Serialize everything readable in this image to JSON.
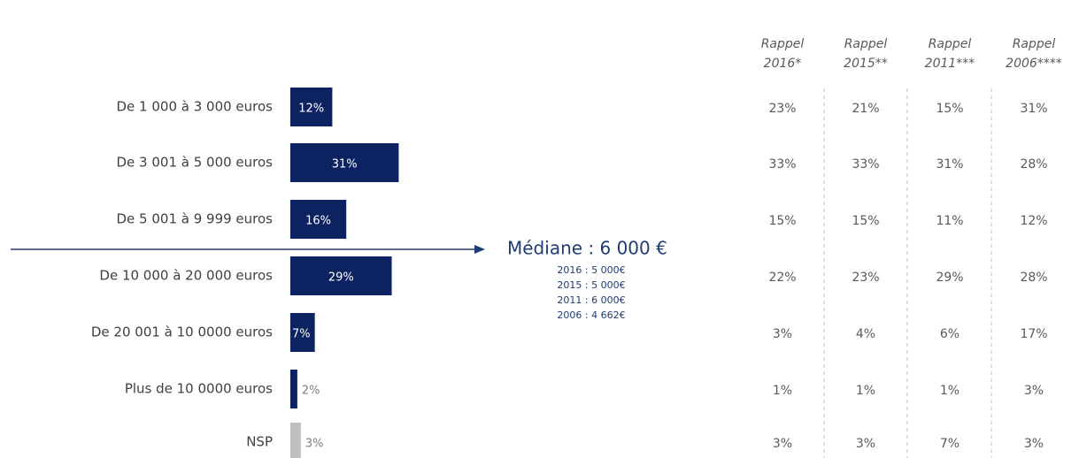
{
  "chart_data": {
    "type": "bar",
    "orientation": "horizontal",
    "categories": [
      "De 1 000 à 3 000 euros",
      "De 3 001 à 5 000 euros",
      "De 5 001 à 9 999 euros",
      "De 10 000 à 20 000 euros",
      "De 20 001 à 10 0000 euros",
      "Plus de 10 0000 euros",
      "NSP"
    ],
    "values": [
      12,
      31,
      16,
      29,
      7,
      2,
      3
    ],
    "value_labels": [
      "12%",
      "31%",
      "16%",
      "29%",
      "7%",
      "2%",
      "3%"
    ],
    "colors": [
      "#0d2260",
      "#0d2260",
      "#0d2260",
      "#0d2260",
      "#0d2260",
      "#0d2260",
      "#bfbfbf"
    ],
    "annotation": {
      "text": "Médiane : 6 000 €",
      "details": [
        "2016 : 5 000€",
        "2015 : 5 000€",
        "2011 : 6 000€",
        "2006 : 4 662€"
      ]
    },
    "table": {
      "columns": [
        [
          "Rappel",
          "2016*"
        ],
        [
          "Rappel",
          "2015**"
        ],
        [
          "Rappel",
          "2011***"
        ],
        [
          "Rappel",
          "2006****"
        ]
      ],
      "rows": [
        [
          "23%",
          "21%",
          "15%",
          "31%"
        ],
        [
          "33%",
          "33%",
          "31%",
          "28%"
        ],
        [
          "15%",
          "15%",
          "11%",
          "12%"
        ],
        [
          "22%",
          "23%",
          "29%",
          "28%"
        ],
        [
          "3%",
          "4%",
          "6%",
          "17%"
        ],
        [
          "1%",
          "1%",
          "1%",
          "3%"
        ],
        [
          "3%",
          "3%",
          "7%",
          "3%"
        ]
      ]
    }
  }
}
